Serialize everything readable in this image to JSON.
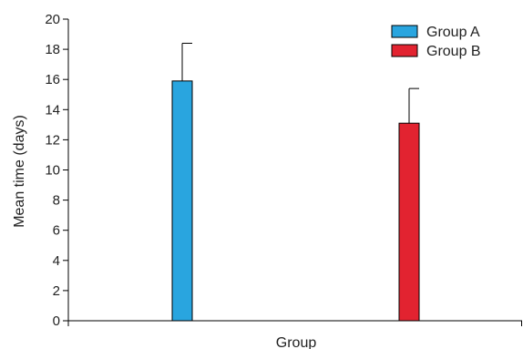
{
  "chart_data": {
    "type": "bar",
    "categories": [
      "Group A",
      "Group B"
    ],
    "values": [
      15.9,
      13.1
    ],
    "error_upper": [
      2.5,
      2.3
    ],
    "colors": [
      "#29a5df",
      "#e22330"
    ],
    "xlabel": "Group",
    "ylabel": "Mean time (days)",
    "ylim": [
      0,
      20
    ],
    "yticks": [
      0,
      2,
      4,
      6,
      8,
      10,
      12,
      14,
      16,
      18,
      20
    ],
    "grid": false,
    "legend": {
      "position": "top-right",
      "entries": [
        "Group A",
        "Group B"
      ]
    }
  }
}
